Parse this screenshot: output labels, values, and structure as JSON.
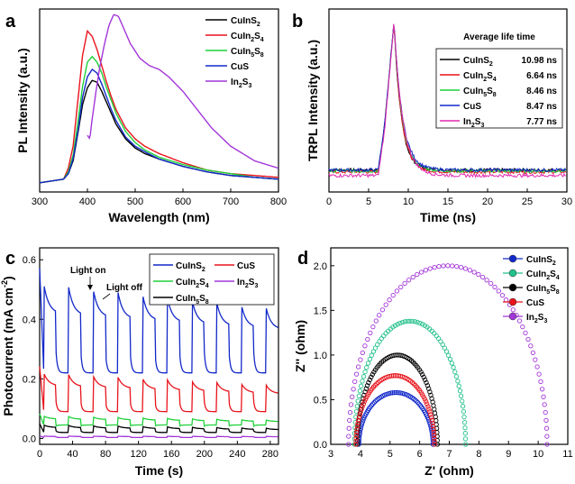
{
  "chart_data": [
    {
      "panel": "a",
      "type": "line",
      "title": "",
      "xlabel": "Wavelength (nm)",
      "ylabel": "PL Intensity (a.u.)",
      "xlim": [
        300,
        800
      ],
      "ylim": [
        0,
        1.0
      ],
      "xticks": [
        "300",
        "400",
        "500",
        "600",
        "700",
        "800"
      ],
      "legend": "top-right",
      "series": [
        {
          "name": "CuInS",
          "sub": "2",
          "color": "#000000",
          "x": [
            350,
            360,
            370,
            380,
            390,
            400,
            410,
            420,
            430,
            440,
            450,
            460,
            480,
            500,
            520,
            550,
            600,
            650,
            700,
            750,
            800
          ],
          "y": [
            0.02,
            0.05,
            0.12,
            0.27,
            0.43,
            0.52,
            0.56,
            0.55,
            0.5,
            0.44,
            0.38,
            0.32,
            0.24,
            0.19,
            0.16,
            0.13,
            0.09,
            0.06,
            0.04,
            0.03,
            0.02
          ]
        },
        {
          "name": "CuIn",
          "sub": "2",
          "name2": "S",
          "sub2": "4",
          "color": "#e8141c",
          "x": [
            350,
            360,
            370,
            380,
            390,
            400,
            410,
            420,
            430,
            440,
            450,
            460,
            480,
            500,
            520,
            550,
            600,
            650,
            700,
            750,
            800
          ],
          "y": [
            0.02,
            0.08,
            0.2,
            0.45,
            0.7,
            0.83,
            0.8,
            0.73,
            0.64,
            0.55,
            0.47,
            0.4,
            0.3,
            0.24,
            0.2,
            0.16,
            0.11,
            0.07,
            0.05,
            0.04,
            0.03
          ]
        },
        {
          "name": "CuIn",
          "sub": "5",
          "name2": "S",
          "sub2": "8",
          "color": "#1fd13a",
          "x": [
            350,
            360,
            370,
            380,
            390,
            400,
            410,
            420,
            430,
            440,
            450,
            460,
            480,
            500,
            520,
            550,
            600,
            650,
            700,
            750,
            800
          ],
          "y": [
            0.02,
            0.06,
            0.15,
            0.33,
            0.53,
            0.66,
            0.69,
            0.66,
            0.6,
            0.52,
            0.45,
            0.38,
            0.28,
            0.22,
            0.18,
            0.14,
            0.1,
            0.07,
            0.05,
            0.03,
            0.02
          ]
        },
        {
          "name": "CuS",
          "sub": "",
          "color": "#1229c9",
          "x": [
            350,
            360,
            370,
            380,
            390,
            400,
            410,
            420,
            430,
            440,
            450,
            460,
            480,
            500,
            520,
            550,
            600,
            650,
            700,
            750,
            800
          ],
          "y": [
            0.02,
            0.05,
            0.13,
            0.28,
            0.47,
            0.58,
            0.62,
            0.6,
            0.54,
            0.47,
            0.4,
            0.34,
            0.25,
            0.2,
            0.17,
            0.13,
            0.09,
            0.06,
            0.04,
            0.03,
            0.02
          ]
        },
        {
          "name": "In",
          "sub": "2",
          "name2": "S",
          "sub2": "3",
          "color": "#a336d9",
          "x": [
            400,
            405,
            410,
            418,
            425,
            435,
            445,
            455,
            465,
            475,
            490,
            510,
            530,
            550,
            570,
            600,
            630,
            660,
            700,
            750,
            800
          ],
          "y": [
            0.26,
            0.24,
            0.35,
            0.5,
            0.62,
            0.75,
            0.86,
            0.92,
            0.91,
            0.85,
            0.76,
            0.68,
            0.64,
            0.62,
            0.58,
            0.5,
            0.4,
            0.3,
            0.2,
            0.12,
            0.08
          ]
        }
      ]
    },
    {
      "panel": "b",
      "type": "line",
      "title": "",
      "xlabel": "Time (ns)",
      "ylabel": "TRPL Intensity (a.u.)",
      "xlim": [
        0,
        30
      ],
      "ylim": [
        0,
        1.0
      ],
      "xticks": [
        "0",
        "5",
        "10",
        "15",
        "20",
        "25",
        "30"
      ],
      "legend_title": "Average life time",
      "legend": "right",
      "series": [
        {
          "name": "CuInS",
          "sub": "2",
          "life": "10.98 ns",
          "color": "#000000",
          "tail": 0.12
        },
        {
          "name": "CuIn",
          "sub": "2",
          "name2": "S",
          "sub2": "4",
          "life": "6.64 ns",
          "color": "#e8141c",
          "tail": 0.11
        },
        {
          "name": "CuIn",
          "sub": "5",
          "name2": "S",
          "sub2": "8",
          "life": "8.46 ns",
          "color": "#1fd13a",
          "tail": 0.115
        },
        {
          "name": "CuS",
          "sub": "",
          "life": "8.47 ns",
          "color": "#1229c9",
          "tail": 0.12
        },
        {
          "name": "In",
          "sub": "2",
          "name2": "S",
          "sub2": "3",
          "life": "7.77 ns",
          "color": "#e02bb0",
          "tail": 0.09
        }
      ]
    },
    {
      "panel": "c",
      "type": "line",
      "title": "",
      "xlabel": "Time (s)",
      "ylabel_main": "Photocurrent (mA cm",
      "ylabel_sup": "-2",
      "ylabel_end": ")",
      "xlim": [
        0,
        290
      ],
      "ylim": [
        -0.02,
        0.64
      ],
      "xticks": [
        0,
        40,
        80,
        120,
        160,
        200,
        240,
        280
      ],
      "yticks": [
        0.0,
        0.2,
        0.4,
        0.6
      ],
      "annotations": {
        "light_on": "Light on",
        "light_off": "Light off"
      },
      "legend": "top-right",
      "period": 30,
      "series": [
        {
          "name": "CuInS",
          "sub": "2",
          "color": "#1229c9",
          "base": 0.22,
          "peak": 0.52,
          "decay": 0.06
        },
        {
          "name": "CuS",
          "sub": "",
          "color": "#e8141c",
          "base": 0.09,
          "peak": 0.22,
          "decay": 0.03
        },
        {
          "name": "CuIn",
          "sub": "2",
          "name2": "S",
          "sub2": "4",
          "color": "#1fd13a",
          "base": 0.045,
          "peak": 0.075,
          "decay": 0.01
        },
        {
          "name": "In",
          "sub": "2",
          "name2": "S",
          "sub2": "3",
          "color": "#a336d9",
          "base": 0.003,
          "peak": 0.008,
          "decay": 0.001
        },
        {
          "name": "CuIn",
          "sub": "5",
          "name2": "S",
          "sub2": "8",
          "color": "#000000",
          "base": 0.02,
          "peak": 0.045,
          "decay": 0.008
        }
      ]
    },
    {
      "panel": "d",
      "type": "scatter",
      "title": "",
      "xlabel": "Z' (ohm)",
      "ylabel": "Z'' (ohm)",
      "xlim": [
        3,
        11
      ],
      "ylim": [
        0,
        2.2
      ],
      "xticks": [
        3,
        4,
        5,
        6,
        7,
        8,
        9,
        10,
        11
      ],
      "yticks": [
        0.0,
        0.5,
        1.0,
        1.5,
        2.0
      ],
      "legend": "top-right",
      "series": [
        {
          "name": "CuInS",
          "sub": "2",
          "color": "#1229c9",
          "r0": 3.95,
          "r1": 6.45
        },
        {
          "name": "CuIn",
          "sub": "2",
          "name2": "S",
          "sub2": "4",
          "color": "#22c08a",
          "r0": 3.8,
          "r1": 7.55
        },
        {
          "name": "CuIn",
          "sub": "5",
          "name2": "S",
          "sub2": "8",
          "color": "#000000",
          "r0": 3.9,
          "r1": 6.6
        },
        {
          "name": "CuS",
          "sub": "",
          "color": "#e8141c",
          "r0": 3.85,
          "r1": 6.5
        },
        {
          "name": "In",
          "sub": "2",
          "name2": "S",
          "sub2": "3",
          "color": "#a336d9",
          "r0": 3.6,
          "r1": 10.3
        }
      ],
      "series_peaks": [
        0.58,
        1.38,
        1.0,
        0.77,
        2.0
      ]
    }
  ]
}
